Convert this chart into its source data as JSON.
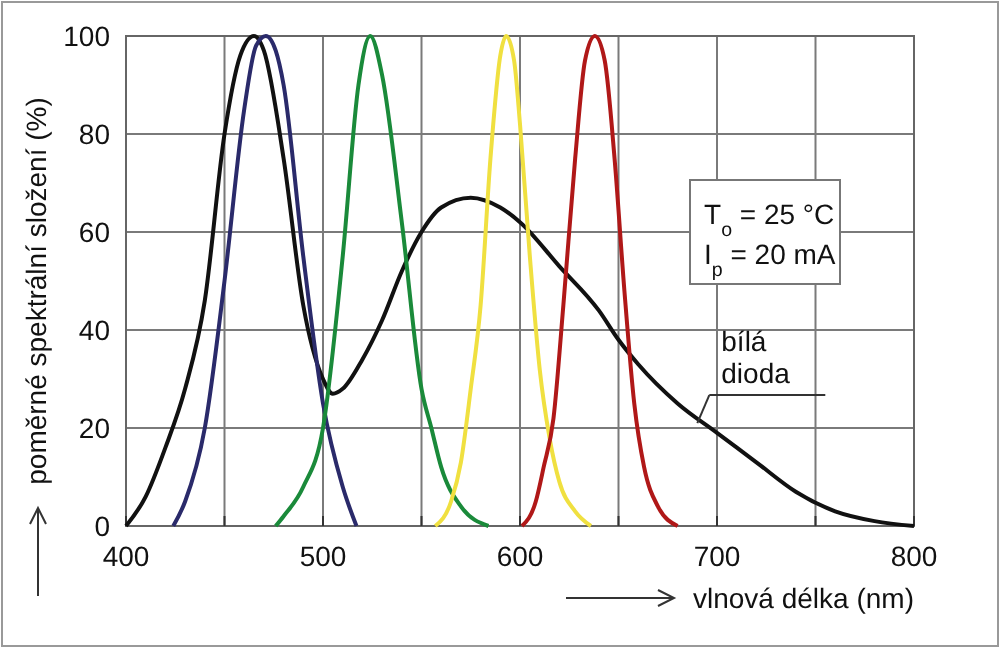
{
  "chart_data": {
    "type": "line",
    "xlabel": "vlnová délka (nm)",
    "ylabel": "poměrné spektrální složení (%)",
    "xlim": [
      400,
      800
    ],
    "ylim": [
      0,
      100
    ],
    "xticks": [
      400,
      {
        "value": 450,
        "label": null
      },
      500,
      {
        "value": 550,
        "label": null
      },
      600,
      {
        "value": 650,
        "label": null
      },
      700,
      {
        "value": 750,
        "label": null
      },
      800
    ],
    "yticks": [
      0,
      20,
      40,
      60,
      80,
      100
    ],
    "grid": true,
    "marker": "none",
    "line_style": "solid",
    "series": [
      {
        "color": "#111111",
        "x": [
          400,
          410,
          420,
          430,
          440,
          450,
          458,
          465,
          470,
          480,
          490,
          500,
          505,
          510,
          520,
          530,
          540,
          550,
          560,
          575,
          590,
          600,
          620,
          640,
          650,
          660,
          680,
          700,
          720,
          740,
          760,
          780,
          800
        ],
        "values": [
          0,
          6,
          16,
          28,
          46,
          80,
          96,
          100,
          97,
          75,
          45,
          30,
          27,
          28,
          34,
          42,
          52,
          60,
          65,
          67,
          65,
          62,
          53,
          44,
          38,
          33,
          25,
          19,
          13,
          7,
          3,
          1,
          0
        ]
      },
      {
        "color": "#2a2a6a",
        "x": [
          424,
          430,
          440,
          450,
          460,
          466,
          471,
          476,
          480,
          490,
          500,
          510,
          517
        ],
        "values": [
          0,
          5,
          20,
          50,
          85,
          98,
          100,
          97,
          90,
          55,
          25,
          8,
          0
        ]
      },
      {
        "color": "#1a8a3a",
        "x": [
          476,
          480,
          490,
          500,
          510,
          518,
          524,
          530,
          540,
          550,
          555,
          560,
          570,
          584
        ],
        "values": [
          0,
          2,
          8,
          20,
          55,
          90,
          100,
          92,
          62,
          28,
          20,
          12,
          4,
          0
        ]
      },
      {
        "color": "#f0e040",
        "x": [
          557,
          565,
          570,
          575,
          580,
          585,
          590,
          593,
          597,
          600,
          605,
          610,
          615,
          620,
          628,
          636
        ],
        "values": [
          0,
          5,
          13,
          28,
          45,
          75,
          96,
          100,
          95,
          82,
          55,
          32,
          18,
          9,
          3,
          0
        ]
      },
      {
        "color": "#b01818",
        "x": [
          601,
          608,
          612,
          617,
          622,
          628,
          633,
          638,
          643,
          648,
          653,
          658,
          663,
          670,
          680
        ],
        "values": [
          0,
          5,
          12,
          22,
          45,
          75,
          95,
          100,
          95,
          75,
          48,
          25,
          12,
          4,
          0
        ]
      }
    ],
    "annotations": [
      "T$_{o}$ = 25 °C",
      "I$_{p}$ = 20 mA",
      {
        "text": "bílá dioda",
        "x": 690,
        "y": 21
      }
    ]
  }
}
